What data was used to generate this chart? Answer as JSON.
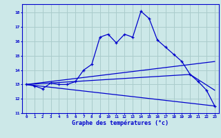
{
  "xlabel": "Graphe des températures (°c)",
  "bg_color": "#cce8e8",
  "grid_color": "#aacccc",
  "line_color": "#0000cc",
  "xlim": [
    -0.5,
    23.5
  ],
  "ylim": [
    11,
    18.6
  ],
  "yticks": [
    11,
    12,
    13,
    14,
    15,
    16,
    17,
    18
  ],
  "xticks": [
    0,
    1,
    2,
    3,
    4,
    5,
    6,
    7,
    8,
    9,
    10,
    11,
    12,
    13,
    14,
    15,
    16,
    17,
    18,
    19,
    20,
    21,
    22,
    23
  ],
  "line1_x": [
    0,
    1,
    2,
    3,
    4,
    5,
    6,
    7,
    8,
    9,
    10,
    11,
    12,
    13,
    14,
    15,
    16,
    17,
    18,
    19,
    20,
    21,
    22,
    23
  ],
  "line1_y": [
    13.0,
    12.9,
    12.7,
    13.1,
    13.0,
    13.0,
    13.2,
    14.0,
    14.4,
    16.3,
    16.5,
    15.9,
    16.5,
    16.3,
    18.1,
    17.6,
    16.1,
    15.6,
    15.1,
    14.6,
    13.7,
    13.2,
    12.6,
    11.5
  ],
  "line2_x": [
    0,
    23
  ],
  "line2_y": [
    13.0,
    11.5
  ],
  "line3_x": [
    0,
    23
  ],
  "line3_y": [
    13.0,
    14.6
  ],
  "line4_x": [
    0,
    20,
    23
  ],
  "line4_y": [
    13.0,
    13.7,
    12.6
  ]
}
